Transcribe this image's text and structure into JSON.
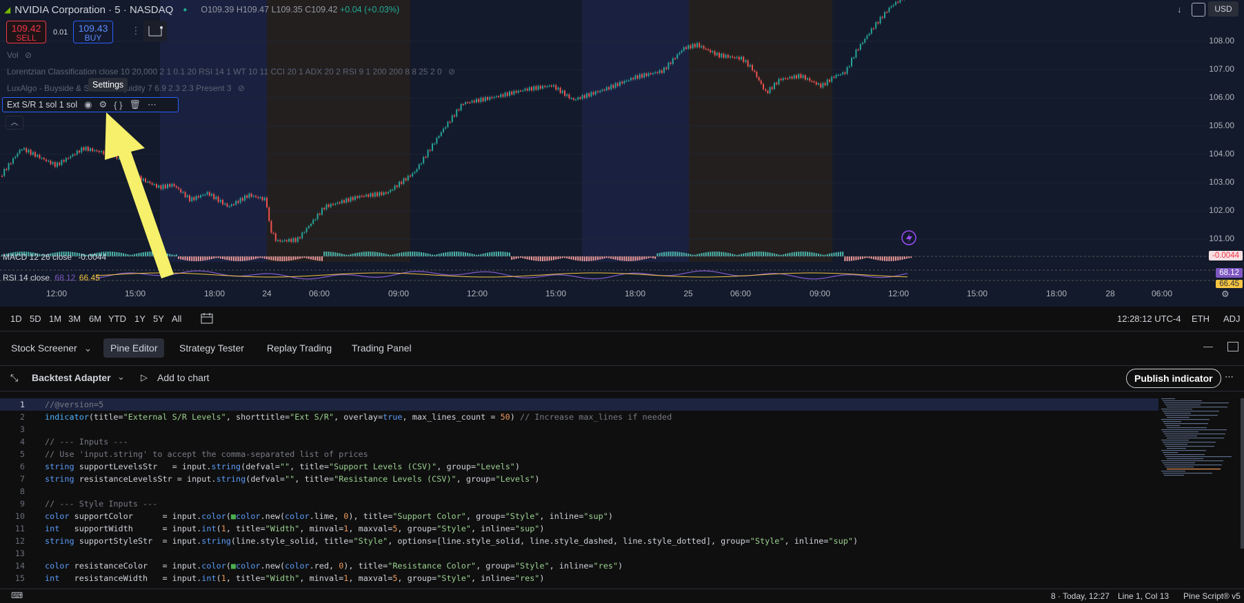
{
  "chart": {
    "symbol_title": "NVIDIA Corporation · 5 · NASDAQ",
    "ohlc": {
      "o": "O109.39",
      "h": "H109.47",
      "l": "L109.35",
      "c": "C109.42",
      "chg": "+0.04 (+0.03%)"
    },
    "sell": {
      "price": "109.42",
      "label": "SELL"
    },
    "buy": {
      "price": "109.43",
      "label": "BUY"
    },
    "spread": "0.01",
    "vol_label": "Vol",
    "lorentzian_legend": "Lorentzian Classification close 10 20,000 2 1 0.1 20 RSI 14 1 WT 10 11 CCI 20 1 ADX 20 2 RSI 9 1 200 200 8 8 25 2 0",
    "luxalgo_legend": "LuxAlgo - Buyside & Sellside Liquidity 7 6.9 2.3 2.3 Present 3",
    "ext_sr_legend": "Ext S/R 1 sol 1 sol",
    "tooltip": "Settings",
    "macd_label": "MACD 12 26 close",
    "macd_value": "-0.0044",
    "rsi_label": "RSI 14 close",
    "rsi_value": "68.12",
    "rsi_ma_value": "66.45",
    "currency": "USD",
    "price_axis": [
      "108.00",
      "107.00",
      "106.00",
      "105.00",
      "104.00",
      "103.00",
      "102.00",
      "101.00"
    ],
    "macd_tag": "-0.0044",
    "rsi_tag": "68.12",
    "rsi_ma_tag": "66.45",
    "time_axis": [
      "12:00",
      "15:00",
      "18:00",
      "24",
      "06:00",
      "09:00",
      "12:00",
      "15:00",
      "18:00",
      "25",
      "06:00",
      "09:00",
      "12:00",
      "15:00",
      "18:00",
      "28",
      "06:00"
    ]
  },
  "range_bar": {
    "ranges": [
      "1D",
      "5D",
      "1M",
      "3M",
      "6M",
      "YTD",
      "1Y",
      "5Y",
      "All"
    ],
    "clock": "12:28:12 UTC-4",
    "session": "ETH",
    "adj": "ADJ"
  },
  "bottom_tabs": [
    "Stock Screener",
    "Pine Editor",
    "Strategy Tester",
    "Replay Trading",
    "Trading Panel"
  ],
  "editor": {
    "script_name": "Backtest Adapter",
    "add_to_chart": "Add to chart",
    "publish": "Publish indicator"
  },
  "code_lines": [
    "//@version=5",
    "indicator(title=\"External S/R Levels\", shorttitle=\"Ext S/R\", overlay=true, max_lines_count = 50) // Increase max_lines if needed",
    "",
    "// --- Inputs ---",
    "// Use 'input.string' to accept the comma-separated list of prices",
    "string supportLevelsStr   = input.string(defval=\"\", title=\"Support Levels (CSV)\", group=\"Levels\")",
    "string resistanceLevelsStr = input.string(defval=\"\", title=\"Resistance Levels (CSV)\", group=\"Levels\")",
    "",
    "// --- Style Inputs ---",
    "color supportColor      = input.color(■color.new(color.lime, 0), title=\"Support Color\", group=\"Style\", inline=\"sup\")",
    "int   supportWidth      = input.int(1, title=\"Width\", minval=1, maxval=5, group=\"Style\", inline=\"sup\")",
    "string supportStyleStr  = input.string(line.style_solid, title=\"Style\", options=[line.style_solid, line.style_dashed, line.style_dotted], group=\"Style\", inline=\"sup\")",
    "",
    "color resistanceColor   = input.color(■color.new(color.red, 0), title=\"Resistance Color\", group=\"Style\", inline=\"res\")",
    "int   resistanceWidth   = input.int(1, title=\"Width\", minval=1, maxval=5, group=\"Style\", inline=\"res\")"
  ],
  "status": {
    "version_info": "8 · Today, 12:27",
    "position": "Line 1, Col 13",
    "language": "Pine Script® v5"
  }
}
